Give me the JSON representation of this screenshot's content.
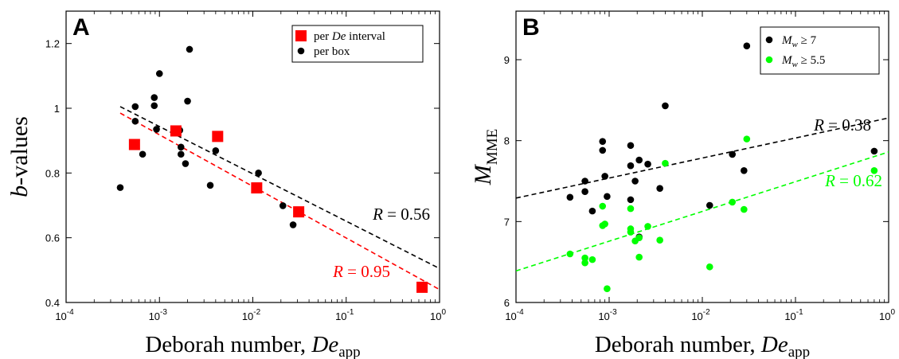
{
  "chart_data": [
    {
      "type": "scatter",
      "panel_label": "A",
      "xlabel_text": "Deborah number, ",
      "xlabel_math": "De",
      "xlabel_sub": "app",
      "ylabel_math": "b",
      "ylabel_text": "-values",
      "xscale": "log",
      "xlim": [
        0.0001,
        1
      ],
      "ylim": [
        0.4,
        1.3
      ],
      "x_ticks": [
        {
          "base": "10",
          "exp": "-4"
        },
        {
          "base": "10",
          "exp": "-3"
        },
        {
          "base": "10",
          "exp": "-2"
        },
        {
          "base": "10",
          "exp": "-1"
        },
        {
          "base": "10",
          "exp": "0"
        }
      ],
      "y_ticks": [
        "0.4",
        "0.6",
        "0.8",
        "1",
        "1.2"
      ],
      "y_tick_values": [
        0.4,
        0.6,
        0.8,
        1.0,
        1.2
      ],
      "legend": {
        "position": "top-right",
        "entries": [
          {
            "pre": "per ",
            "math": "De",
            "post": " interval",
            "marker": "square",
            "color": "#ff0000"
          },
          {
            "pre": "per box",
            "math": "",
            "post": "",
            "marker": "circle",
            "color": "#000000"
          }
        ]
      },
      "series": [
        {
          "name": "per box",
          "marker": "circle",
          "color": "#000000",
          "points": [
            [
              0.00038,
              0.755
            ],
            [
              0.00055,
              1.005
            ],
            [
              0.00055,
              0.96
            ],
            [
              0.00066,
              0.858
            ],
            [
              0.00088,
              1.033
            ],
            [
              0.00088,
              1.008
            ],
            [
              0.00093,
              0.935
            ],
            [
              0.001,
              1.107
            ],
            [
              0.00165,
              0.932
            ],
            [
              0.0017,
              0.88
            ],
            [
              0.0017,
              0.858
            ],
            [
              0.0019,
              0.829
            ],
            [
              0.002,
              1.022
            ],
            [
              0.0021,
              1.182
            ],
            [
              0.0035,
              0.762
            ],
            [
              0.004,
              0.869
            ],
            [
              0.0115,
              0.8
            ],
            [
              0.021,
              0.699
            ],
            [
              0.027,
              0.64
            ]
          ]
        },
        {
          "name": "per De interval",
          "marker": "square",
          "color": "#ff0000",
          "points": [
            [
              0.00054,
              0.888
            ],
            [
              0.0015,
              0.93
            ],
            [
              0.0042,
              0.913
            ],
            [
              0.011,
              0.754
            ],
            [
              0.031,
              0.68
            ],
            [
              0.65,
              0.447
            ]
          ]
        }
      ],
      "fits": [
        {
          "label_math": "R",
          "label_value": " = 0.56",
          "color": "#000000",
          "x": [
            0.00038,
            1
          ],
          "y": [
            1.005,
            0.505
          ]
        },
        {
          "label_math": "R",
          "label_value": " = 0.95",
          "color": "#ff0000",
          "x": [
            0.00038,
            1
          ],
          "y": [
            0.985,
            0.44
          ]
        }
      ]
    },
    {
      "type": "scatter",
      "panel_label": "B",
      "xlabel_text": "Deborah number, ",
      "xlabel_math": "De",
      "xlabel_sub": "app",
      "ylabel_math": "M",
      "ylabel_sub": "MME",
      "xscale": "log",
      "xlim": [
        0.0001,
        1
      ],
      "ylim": [
        6,
        9.6
      ],
      "x_ticks": [
        {
          "base": "10",
          "exp": "-4"
        },
        {
          "base": "10",
          "exp": "-3"
        },
        {
          "base": "10",
          "exp": "-2"
        },
        {
          "base": "10",
          "exp": "-1"
        },
        {
          "base": "10",
          "exp": "0"
        }
      ],
      "y_ticks": [
        "6",
        "7",
        "8",
        "9"
      ],
      "y_tick_values": [
        6,
        7,
        8,
        9
      ],
      "legend": {
        "position": "top-right",
        "entries": [
          {
            "math": "M",
            "sub": "w",
            "post": " ≥ 7",
            "marker": "circle",
            "color": "#000000"
          },
          {
            "math": "M",
            "sub": "w",
            "post": " ≥ 5.5",
            "marker": "circle",
            "color": "#00ff00"
          }
        ]
      },
      "series": [
        {
          "name": "M_w ≥ 7",
          "marker": "circle",
          "color": "#000000",
          "points": [
            [
              0.00038,
              7.3
            ],
            [
              0.00055,
              7.5
            ],
            [
              0.00055,
              7.37
            ],
            [
              0.00066,
              7.13
            ],
            [
              0.00085,
              7.99
            ],
            [
              0.00085,
              7.88
            ],
            [
              0.0009,
              7.56
            ],
            [
              0.00095,
              7.31
            ],
            [
              0.0017,
              7.94
            ],
            [
              0.0017,
              7.69
            ],
            [
              0.0017,
              7.27
            ],
            [
              0.0019,
              7.5
            ],
            [
              0.0021,
              7.76
            ],
            [
              0.0021,
              6.81
            ],
            [
              0.0026,
              7.71
            ],
            [
              0.0035,
              7.41
            ],
            [
              0.004,
              8.43
            ],
            [
              0.012,
              7.2
            ],
            [
              0.021,
              7.83
            ],
            [
              0.028,
              7.63
            ],
            [
              0.03,
              9.17
            ],
            [
              0.7,
              7.87
            ]
          ]
        },
        {
          "name": "M_w ≥ 5.5",
          "marker": "circle",
          "color": "#00ff00",
          "points": [
            [
              0.00038,
              6.6
            ],
            [
              0.00055,
              6.55
            ],
            [
              0.00055,
              6.49
            ],
            [
              0.00066,
              6.53
            ],
            [
              0.00085,
              7.19
            ],
            [
              0.00085,
              6.95
            ],
            [
              0.0009,
              6.97
            ],
            [
              0.00095,
              6.17
            ],
            [
              0.0017,
              7.16
            ],
            [
              0.0017,
              6.91
            ],
            [
              0.0017,
              6.87
            ],
            [
              0.0019,
              6.76
            ],
            [
              0.0021,
              6.8
            ],
            [
              0.0021,
              6.56
            ],
            [
              0.0026,
              6.94
            ],
            [
              0.0035,
              6.77
            ],
            [
              0.004,
              7.72
            ],
            [
              0.012,
              6.44
            ],
            [
              0.021,
              7.24
            ],
            [
              0.028,
              7.15
            ],
            [
              0.03,
              8.02
            ],
            [
              0.7,
              7.63
            ]
          ]
        }
      ],
      "fits": [
        {
          "label_math": "R",
          "label_value": " = 0.38",
          "color": "#000000",
          "x": [
            0.0001,
            1
          ],
          "y": [
            7.29,
            8.28
          ]
        },
        {
          "label_math": "R",
          "label_value": " = 0.62",
          "color": "#00ff00",
          "x": [
            0.0001,
            1
          ],
          "y": [
            6.39,
            7.86
          ]
        }
      ]
    }
  ]
}
